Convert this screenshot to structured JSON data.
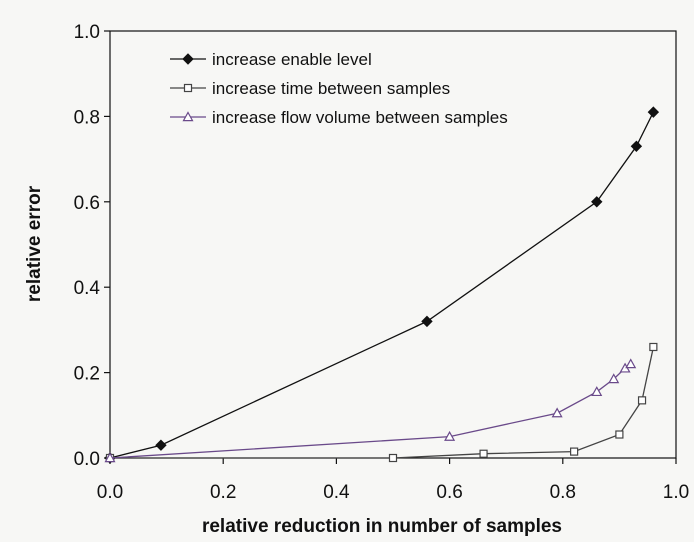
{
  "chart_data": {
    "type": "line",
    "title": "",
    "xlabel": "relative reduction in number of samples",
    "ylabel": "relative error",
    "xlim": [
      0,
      1
    ],
    "ylim": [
      0,
      1
    ],
    "xticks": [
      0.0,
      0.2,
      0.4,
      0.6,
      0.8,
      1.0
    ],
    "yticks": [
      0.0,
      0.2,
      0.4,
      0.6,
      0.8,
      1.0
    ],
    "xtick_labels": [
      "0.0",
      "0.2",
      "0.4",
      "0.6",
      "0.8",
      "1.0"
    ],
    "ytick_labels": [
      "0.0",
      "0.2",
      "0.4",
      "0.6",
      "0.8",
      "1.0"
    ],
    "grid": false,
    "legend_position": "top-left",
    "series": [
      {
        "name": "increase enable level",
        "marker": "filled-diamond",
        "color": "#111111",
        "points": [
          [
            0.0,
            0.0
          ],
          [
            0.09,
            0.03
          ],
          [
            0.56,
            0.32
          ],
          [
            0.86,
            0.6
          ],
          [
            0.93,
            0.73
          ],
          [
            0.96,
            0.81
          ]
        ]
      },
      {
        "name": "increase time between samples",
        "marker": "open-square",
        "color": "#444444",
        "points": [
          [
            0.0,
            0.0
          ],
          [
            0.5,
            0.0
          ],
          [
            0.66,
            0.01
          ],
          [
            0.82,
            0.015
          ],
          [
            0.9,
            0.055
          ],
          [
            0.94,
            0.135
          ],
          [
            0.96,
            0.26
          ]
        ]
      },
      {
        "name": "increase flow volume between samples",
        "marker": "open-triangle",
        "color": "#6a4a8a",
        "points": [
          [
            0.0,
            0.0
          ],
          [
            0.6,
            0.05
          ],
          [
            0.79,
            0.105
          ],
          [
            0.86,
            0.155
          ],
          [
            0.89,
            0.185
          ],
          [
            0.91,
            0.21
          ],
          [
            0.92,
            0.22
          ]
        ]
      }
    ]
  }
}
